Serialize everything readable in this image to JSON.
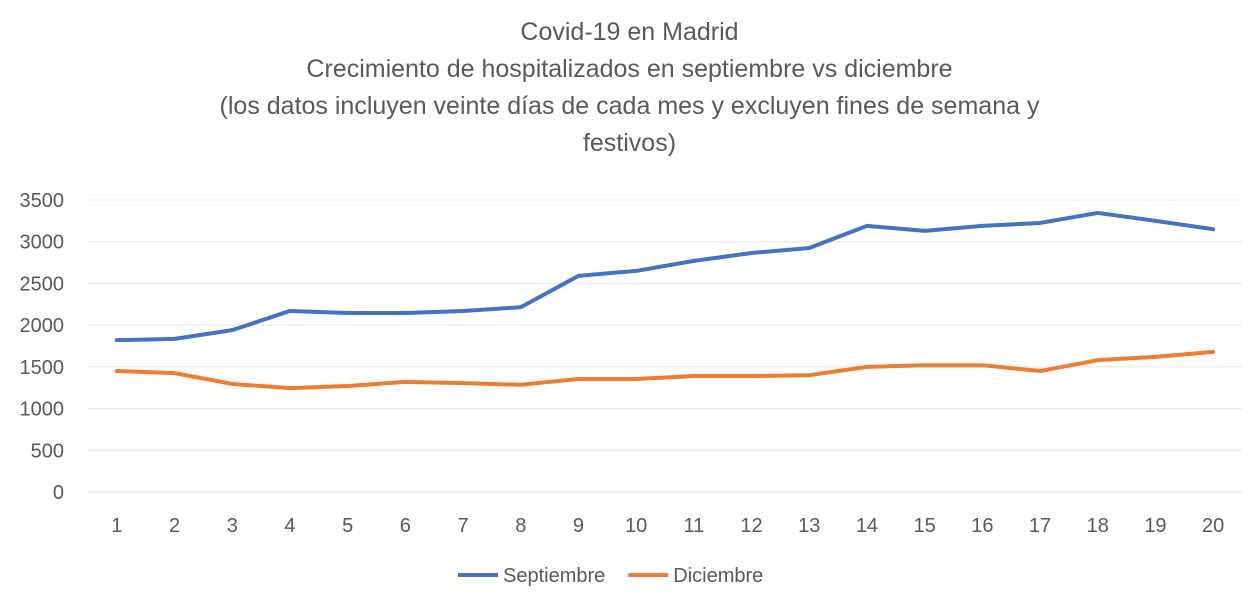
{
  "chart_data": {
    "type": "line",
    "title_lines": [
      "Covid-19 en Madrid",
      "Crecimiento de hospitalizados en septiembre vs diciembre",
      "(los datos incluyen veinte días de cada mes y excluyen fines de semana y",
      "festivos)"
    ],
    "categories": [
      "1",
      "2",
      "3",
      "4",
      "5",
      "6",
      "7",
      "8",
      "9",
      "10",
      "11",
      "12",
      "13",
      "14",
      "15",
      "16",
      "17",
      "18",
      "19",
      "20"
    ],
    "yticks": [
      0,
      500,
      1000,
      1500,
      2000,
      2500,
      3000,
      3500
    ],
    "ylim": [
      0,
      3500
    ],
    "grid": true,
    "legend_position": "bottom",
    "series": [
      {
        "name": "Septiembre",
        "color": "#4472C4",
        "values": [
          1820,
          1835,
          1940,
          2170,
          2145,
          2145,
          2170,
          2215,
          2590,
          2650,
          2770,
          2865,
          2925,
          3190,
          3130,
          3190,
          3225,
          3345,
          3250,
          3150
        ]
      },
      {
        "name": "Diciembre",
        "color": "#ED7D31",
        "values": [
          1450,
          1425,
          1295,
          1245,
          1270,
          1320,
          1305,
          1285,
          1355,
          1355,
          1390,
          1390,
          1400,
          1500,
          1520,
          1520,
          1450,
          1580,
          1620,
          1680
        ]
      }
    ]
  }
}
